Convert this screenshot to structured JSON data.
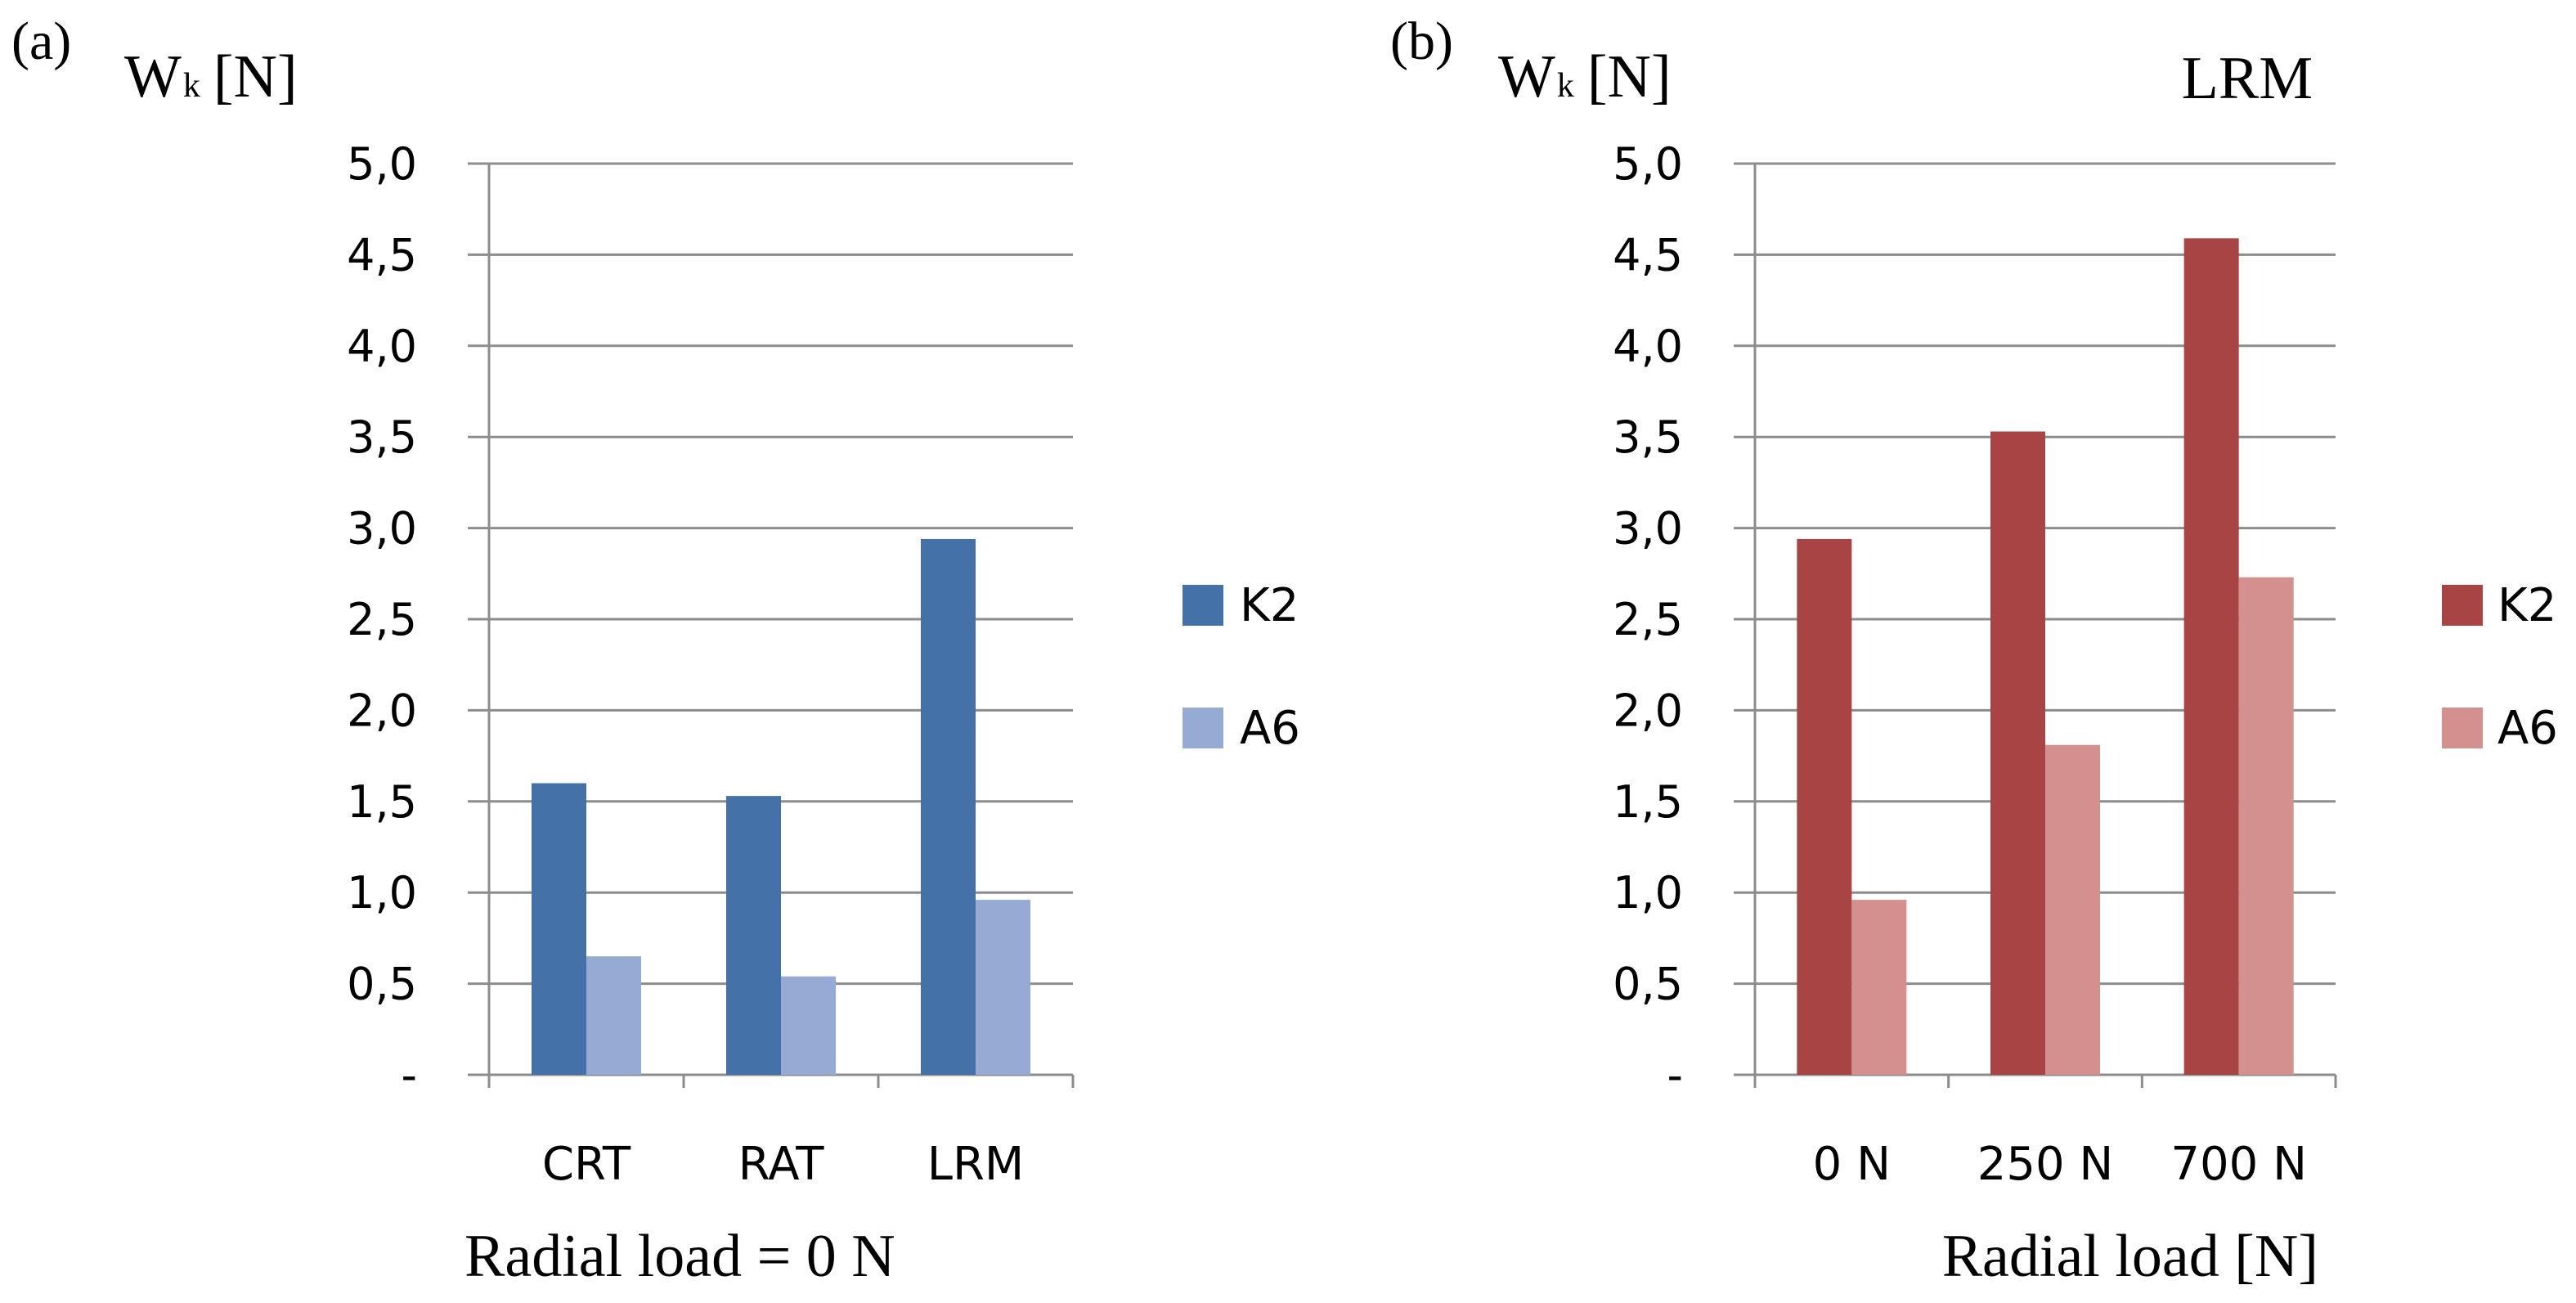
{
  "figure": {
    "panels": [
      "(a)",
      "(b)"
    ]
  },
  "chart_data": [
    {
      "type": "bar",
      "panel_label": "(a)",
      "title": "",
      "ylabel_main": "W",
      "ylabel_sub": "k",
      "ylabel_unit": "[N]",
      "xlabel": "Radial load = 0 N",
      "categories": [
        "CRT",
        "RAT",
        "LRM"
      ],
      "ylim": [
        0,
        5
      ],
      "yticks": [
        "-",
        "0,5",
        "1,0",
        "1,5",
        "2,0",
        "2,5",
        "3,0",
        "3,5",
        "4,0",
        "4,5",
        "5,0"
      ],
      "grid": true,
      "legend_position": "right",
      "series": [
        {
          "name": "K2",
          "color": "#4472a8",
          "values": [
            1.6,
            1.53,
            2.94
          ]
        },
        {
          "name": "A6",
          "color": "#95abd4",
          "values": [
            0.65,
            0.54,
            0.96
          ]
        }
      ]
    },
    {
      "type": "bar",
      "panel_label": "(b)",
      "title": "LRM",
      "ylabel_main": "W",
      "ylabel_sub": "k",
      "ylabel_unit": "[N]",
      "xlabel": "Radial load [N]",
      "categories": [
        "0 N",
        "250 N",
        "700 N"
      ],
      "ylim": [
        0,
        5
      ],
      "yticks": [
        "-",
        "0,5",
        "1,0",
        "1,5",
        "2,0",
        "2,5",
        "3,0",
        "3,5",
        "4,0",
        "4,5",
        "5,0"
      ],
      "grid": true,
      "legend_position": "right",
      "series": [
        {
          "name": "K2",
          "color": "#a84443",
          "values": [
            2.94,
            3.53,
            4.59
          ]
        },
        {
          "name": "A6",
          "color": "#d4908f",
          "values": [
            0.96,
            1.81,
            2.73
          ]
        }
      ]
    }
  ]
}
